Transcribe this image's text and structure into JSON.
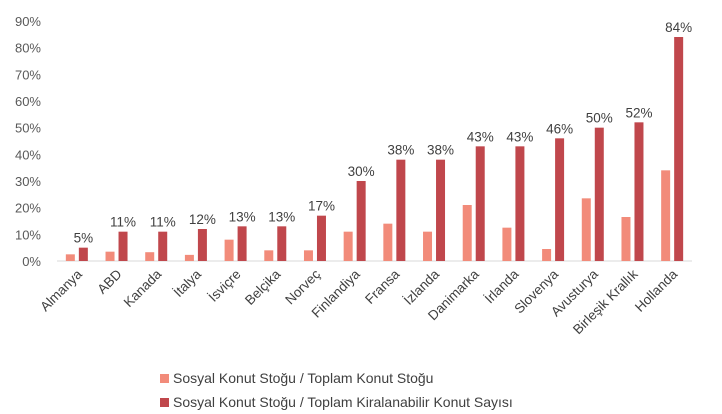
{
  "chart_data": {
    "type": "bar",
    "categories": [
      "Almanya",
      "ABD",
      "Kanada",
      "İtalya",
      "İsviçre",
      "Belçika",
      "Norveç",
      "Finlandiya",
      "Fransa",
      "İzlanda",
      "Danimarka",
      "İrlanda",
      "Slovenya",
      "Avusturya",
      "Birleşik Krallık",
      "Hollanda"
    ],
    "series": [
      {
        "name": "Sosyal Konut Stoğu / Toplam Konut Stoğu",
        "color": "#f28b7a",
        "values": [
          2.5,
          3.5,
          3.3,
          2.3,
          8,
          4,
          4,
          11,
          14,
          11,
          21,
          12.5,
          4.5,
          23.5,
          16.5,
          34
        ]
      },
      {
        "name": "Sosyal Konut Stoğu / Toplam Kiralanabilir Konut Sayısı",
        "color": "#c0474c",
        "values": [
          5,
          11,
          11,
          12,
          13,
          13,
          17,
          30,
          38,
          38,
          43,
          43,
          46,
          50,
          52,
          84
        ],
        "data_labels": [
          "5%",
          "11%",
          "11%",
          "12%",
          "13%",
          "13%",
          "17%",
          "30%",
          "38%",
          "38%",
          "43%",
          "43%",
          "46%",
          "50%",
          "52%",
          "84%"
        ]
      }
    ],
    "ylim": [
      0,
      90
    ],
    "yticks": [
      "0%",
      "10%",
      "20%",
      "30%",
      "40%",
      "50%",
      "60%",
      "70%",
      "80%",
      "90%"
    ],
    "legend": "bottom",
    "grid": false
  }
}
